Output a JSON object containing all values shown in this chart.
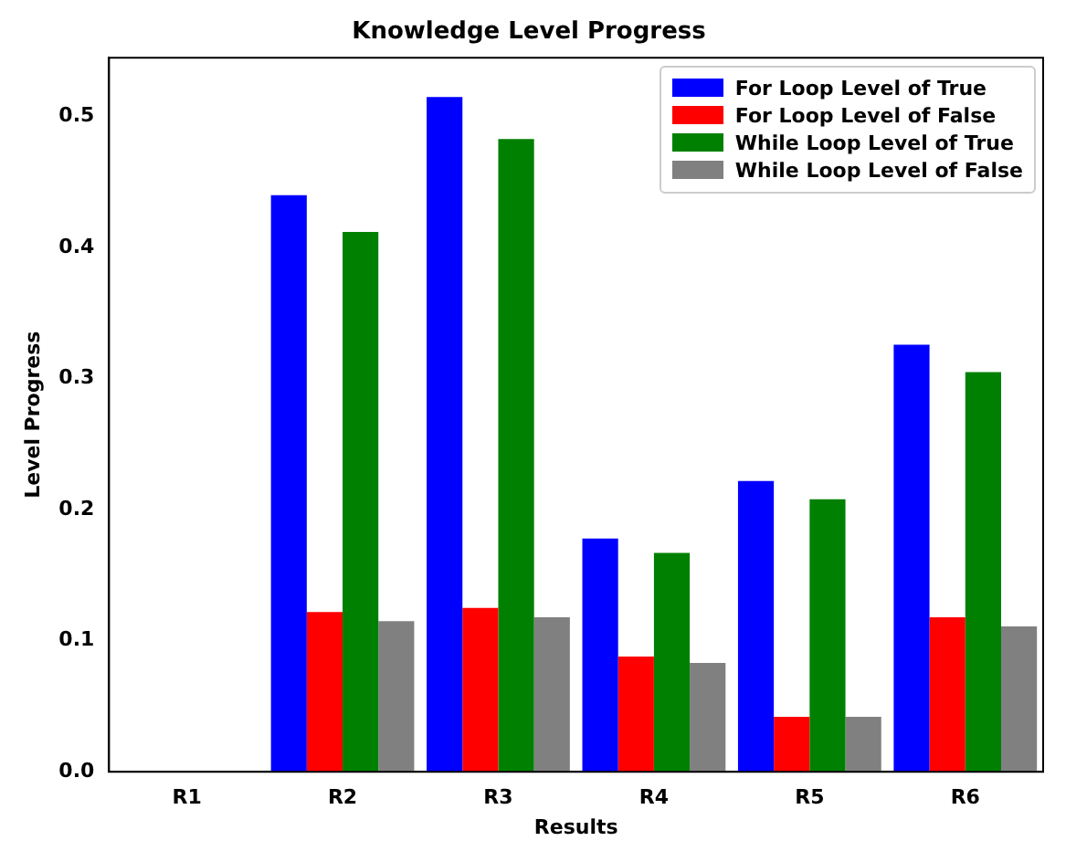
{
  "chart_data": {
    "type": "bar",
    "title": "Knowledge Level Progress",
    "xlabel": "Results",
    "ylabel": "Level Progress",
    "categories": [
      "R1",
      "R2",
      "R3",
      "R4",
      "R5",
      "R6"
    ],
    "series": [
      {
        "name": "For Loop Level of True",
        "color": "#0000ff",
        "values": [
          0,
          0.44,
          0.515,
          0.178,
          0.222,
          0.326
        ]
      },
      {
        "name": "For Loop Level of False",
        "color": "#ff0000",
        "values": [
          0,
          0.122,
          0.125,
          0.088,
          0.042,
          0.118
        ]
      },
      {
        "name": "While Loop Level of True",
        "color": "#008000",
        "values": [
          0,
          0.412,
          0.483,
          0.167,
          0.208,
          0.305
        ]
      },
      {
        "name": "While Loop Level of False",
        "color": "#808080",
        "values": [
          0,
          0.115,
          0.118,
          0.083,
          0.042,
          0.111
        ]
      }
    ],
    "ylim": [
      0,
      0.545
    ],
    "yticks": [
      {
        "value": 0,
        "label": "0.0"
      },
      0.1,
      0.2,
      0.3,
      0.4,
      0.5
    ],
    "legend": "top right",
    "grid": false
  }
}
